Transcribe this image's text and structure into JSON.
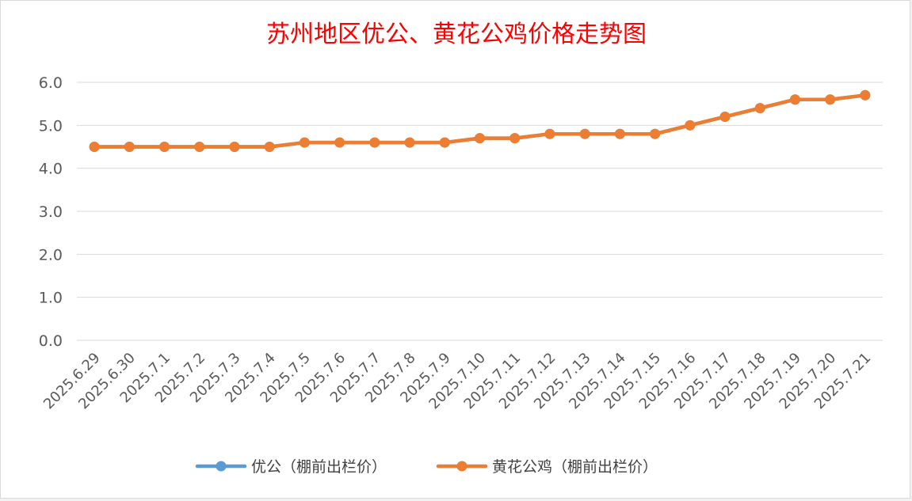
{
  "chart_data": {
    "type": "line",
    "title": "苏州地区优公、黄花公鸡价格走势图",
    "categories": [
      "2025.6.29",
      "2025.6.30",
      "2025.7.1",
      "2025.7.2",
      "2025.7.3",
      "2025.7.4",
      "2025.7.5",
      "2025.7.6",
      "2025.7.7",
      "2025.7.8",
      "2025.7.9",
      "2025.7.10",
      "2025.7.11",
      "2025.7.12",
      "2025.7.13",
      "2025.7.14",
      "2025.7.15",
      "2025.7.16",
      "2025.7.17",
      "2025.7.18",
      "2025.7.19",
      "2025.7.20",
      "2025.7.21"
    ],
    "series": [
      {
        "name": "优公（棚前出栏价）",
        "color": "#5b9bd5",
        "values": [
          4.5,
          4.5,
          4.5,
          4.5,
          4.5,
          4.5,
          4.6,
          4.6,
          4.6,
          4.6,
          4.6,
          4.7,
          4.7,
          4.8,
          4.8,
          4.8,
          4.8,
          5.0,
          5.2,
          5.4,
          5.6,
          5.6,
          5.7
        ]
      },
      {
        "name": "黄花公鸡（棚前出栏价）",
        "color": "#ed7d31",
        "values": [
          4.5,
          4.5,
          4.5,
          4.5,
          4.5,
          4.5,
          4.6,
          4.6,
          4.6,
          4.6,
          4.6,
          4.7,
          4.7,
          4.8,
          4.8,
          4.8,
          4.8,
          5.0,
          5.2,
          5.4,
          5.6,
          5.6,
          5.7
        ]
      }
    ],
    "yticks": [
      "0.0",
      "1.0",
      "2.0",
      "3.0",
      "4.0",
      "5.0",
      "6.0"
    ],
    "ylim": [
      0,
      6
    ],
    "grid": true,
    "legend": "bottom"
  }
}
